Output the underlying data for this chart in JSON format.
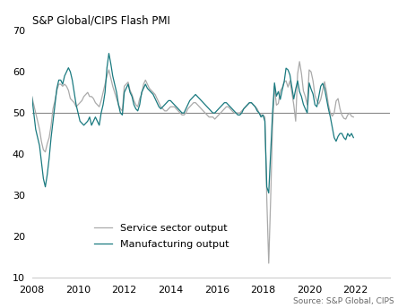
{
  "title": "S&P Global/CIPS Flash PMI",
  "source": "Source: S&P Global, CIPS",
  "manufacturing_label": "Manufacturing output",
  "service_label": "Service sector output",
  "manufacturing_color": "#1a7a80",
  "service_color": "#aaaaaa",
  "reference_line": 50,
  "ylim": [
    10,
    70
  ],
  "yticks": [
    10,
    20,
    30,
    40,
    50,
    60,
    70
  ],
  "xlabel_years": [
    2008,
    2010,
    2012,
    2014,
    2016,
    2018,
    2020,
    2022
  ],
  "start_year": 2008,
  "manufacturing": [
    54.0,
    50.0,
    46.0,
    44.0,
    42.0,
    38.0,
    34.0,
    32.0,
    35.0,
    39.0,
    44.0,
    48.0,
    52.0,
    56.0,
    58.0,
    58.0,
    57.0,
    59.0,
    60.0,
    61.0,
    60.0,
    58.0,
    55.0,
    52.0,
    50.0,
    48.0,
    47.5,
    47.0,
    47.5,
    48.0,
    49.0,
    47.0,
    48.0,
    49.0,
    48.0,
    47.0,
    50.0,
    52.0,
    55.0,
    61.0,
    64.5,
    62.0,
    59.0,
    57.0,
    55.0,
    52.0,
    50.0,
    49.5,
    55.0,
    56.0,
    57.0,
    55.0,
    54.0,
    52.0,
    51.0,
    50.5,
    52.0,
    55.0,
    56.0,
    57.0,
    56.0,
    55.5,
    55.0,
    54.5,
    53.5,
    52.5,
    51.5,
    51.0,
    51.5,
    52.0,
    52.5,
    53.0,
    53.0,
    52.5,
    52.0,
    51.5,
    51.0,
    50.5,
    50.0,
    50.0,
    51.0,
    52.0,
    53.0,
    53.5,
    54.0,
    54.5,
    54.0,
    53.5,
    53.0,
    52.5,
    52.0,
    51.5,
    51.0,
    50.5,
    50.0,
    50.0,
    50.5,
    51.0,
    51.5,
    52.0,
    52.5,
    52.5,
    52.0,
    51.5,
    51.0,
    50.5,
    50.0,
    49.5,
    49.5,
    50.0,
    51.0,
    51.5,
    52.0,
    52.5,
    52.5,
    52.0,
    51.5,
    50.5,
    50.0,
    49.0,
    49.5,
    48.0,
    32.0,
    30.5,
    40.3,
    50.0,
    57.3,
    54.1,
    55.2,
    53.3,
    55.6,
    57.5,
    60.9,
    60.5,
    59.3,
    56.3,
    53.4,
    55.8,
    57.8,
    55.2,
    54.0,
    52.1,
    51.0,
    50.0,
    57.3,
    55.8,
    54.6,
    52.0,
    51.5,
    54.0,
    56.5,
    57.2,
    56.0,
    53.5,
    51.0,
    49.0,
    46.5,
    44.0,
    43.1,
    44.3,
    45.0,
    45.0,
    44.0,
    43.5,
    45.0,
    44.3,
    45.0,
    44.0
  ],
  "services": [
    54.0,
    52.0,
    50.0,
    48.0,
    46.0,
    43.0,
    41.0,
    40.5,
    42.5,
    44.0,
    47.0,
    51.0,
    53.0,
    55.5,
    57.0,
    57.0,
    56.5,
    57.0,
    56.5,
    55.5,
    53.5,
    53.0,
    52.5,
    51.5,
    52.0,
    52.5,
    53.0,
    54.0,
    54.5,
    55.0,
    54.0,
    54.0,
    53.5,
    52.5,
    52.0,
    51.5,
    53.0,
    55.0,
    57.0,
    59.0,
    60.5,
    58.5,
    56.5,
    55.0,
    53.5,
    52.0,
    51.0,
    50.5,
    56.5,
    57.0,
    57.5,
    55.5,
    54.5,
    53.0,
    52.0,
    51.5,
    53.5,
    54.5,
    57.0,
    58.0,
    57.0,
    56.0,
    55.5,
    55.0,
    54.5,
    53.5,
    52.5,
    51.5,
    51.0,
    50.5,
    50.5,
    51.0,
    51.5,
    51.5,
    51.5,
    51.0,
    50.5,
    50.0,
    49.5,
    49.5,
    50.0,
    51.0,
    51.5,
    52.0,
    52.5,
    52.5,
    52.0,
    51.5,
    51.0,
    50.5,
    50.0,
    49.5,
    49.0,
    49.0,
    49.0,
    48.5,
    49.0,
    49.5,
    50.0,
    50.5,
    51.0,
    51.5,
    51.5,
    51.0,
    50.5,
    50.0,
    50.0,
    50.0,
    50.0,
    50.5,
    51.0,
    51.5,
    52.0,
    52.5,
    52.5,
    52.0,
    51.5,
    51.0,
    50.0,
    49.5,
    49.5,
    49.0,
    29.0,
    13.4,
    29.0,
    47.1,
    56.5,
    51.9,
    52.3,
    55.4,
    56.1,
    57.6,
    57.8,
    56.3,
    57.8,
    55.0,
    52.0,
    48.0,
    59.5,
    62.5,
    59.6,
    55.4,
    54.0,
    52.0,
    60.5,
    60.0,
    57.8,
    54.3,
    53.0,
    52.2,
    53.3,
    55.5,
    57.6,
    55.2,
    52.0,
    50.0,
    49.2,
    50.0,
    52.9,
    53.5,
    51.0,
    49.5,
    48.7,
    48.5,
    49.5,
    50.0,
    49.2,
    49.0
  ]
}
